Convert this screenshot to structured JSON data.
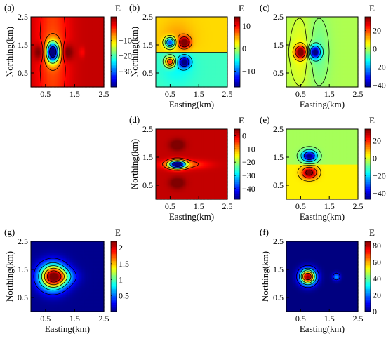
{
  "chart_data": [
    {
      "type": "heatmap",
      "panel_label": "(a)",
      "colorbar_title": "E",
      "xlabel": "Easting(km)",
      "ylabel": "Northing(km)",
      "xlim": [
        0,
        2.5
      ],
      "ylim": [
        0,
        2.5
      ],
      "x_ticks": [
        "0.5",
        "1.5",
        "2.5"
      ],
      "y_ticks": [
        "0.5",
        "1.5",
        "2.5"
      ],
      "show_xlabel": false,
      "show_ylabel": true,
      "clim": [
        -40,
        5
      ],
      "colorbar_ticks": [
        {
          "v": -10,
          "t": "−10"
        },
        {
          "v": -20,
          "t": "−20"
        },
        {
          "v": -30,
          "t": "−30"
        }
      ],
      "background": 2,
      "levels": [
        -35,
        -25,
        -15,
        -5,
        -1
      ],
      "blobs": [
        {
          "x": 0.75,
          "y": 1.25,
          "sx": 0.15,
          "sy": 0.25,
          "a": -42
        },
        {
          "x": 0.75,
          "y": 1.25,
          "sx": 0.38,
          "sy": 2.2,
          "a": -6
        },
        {
          "x": 0.3,
          "y": 1.25,
          "sx": 0.14,
          "sy": 0.2,
          "a": 6
        },
        {
          "x": 1.25,
          "y": 1.25,
          "sx": 0.14,
          "sy": 0.2,
          "a": 6
        },
        {
          "x": 1.75,
          "y": 1.25,
          "sx": 0.07,
          "sy": 0.13,
          "a": -2.5
        }
      ]
    },
    {
      "type": "heatmap",
      "panel_label": "(b)",
      "colorbar_title": "E",
      "xlabel": "Easting(km)",
      "ylabel": "Northing(km)",
      "xlim": [
        0,
        2.5
      ],
      "ylim": [
        0,
        2.5
      ],
      "x_ticks": [
        "0.5",
        "1.5",
        "2.5"
      ],
      "y_ticks": [
        "0.5",
        "1.5",
        "2.5"
      ],
      "show_xlabel": true,
      "show_ylabel": true,
      "clim": [
        -17,
        14
      ],
      "colorbar_ticks": [
        {
          "v": 10,
          "t": "10"
        },
        {
          "v": 0,
          "t": "0"
        },
        {
          "v": -10,
          "t": "−10"
        }
      ],
      "background": 0,
      "split": {
        "y": 1.25,
        "above": 3.5,
        "below": -3.5
      },
      "levels": [
        -12,
        -6,
        -2,
        2,
        6,
        10
      ],
      "blobs": [
        {
          "x": 0.5,
          "y": 1.6,
          "sx": 0.13,
          "sy": 0.13,
          "a": -16
        },
        {
          "x": 1.0,
          "y": 1.6,
          "sx": 0.13,
          "sy": 0.13,
          "a": 14
        },
        {
          "x": 0.5,
          "y": 0.9,
          "sx": 0.13,
          "sy": 0.13,
          "a": 14
        },
        {
          "x": 1.0,
          "y": 0.9,
          "sx": 0.13,
          "sy": 0.13,
          "a": -16
        },
        {
          "x": 0.75,
          "y": 1.6,
          "sx": 0.4,
          "sy": 0.5,
          "a": 2.5
        },
        {
          "x": 0.75,
          "y": 0.9,
          "sx": 0.4,
          "sy": 0.5,
          "a": -2.5
        }
      ]
    },
    {
      "type": "heatmap",
      "panel_label": "(c)",
      "colorbar_title": "E",
      "xlabel": "Easting(km)",
      "ylabel": "",
      "xlim": [
        0,
        2.5
      ],
      "ylim": [
        0,
        2.5
      ],
      "x_ticks": [
        "0.5",
        "1.5",
        "2.5"
      ],
      "y_ticks": [
        "0.5",
        "1.5",
        "2.5"
      ],
      "show_xlabel": true,
      "show_ylabel": false,
      "clim": [
        -42,
        35
      ],
      "colorbar_ticks": [
        {
          "v": 20,
          "t": "20"
        },
        {
          "v": 0,
          "t": "0"
        },
        {
          "v": -20,
          "t": "−20"
        },
        {
          "v": -40,
          "t": "−40"
        }
      ],
      "background": 0,
      "levels": [
        -20,
        -8,
        -2,
        2,
        8,
        20
      ],
      "blobs": [
        {
          "x": 0.5,
          "y": 1.25,
          "sx": 0.13,
          "sy": 0.15,
          "a": 42
        },
        {
          "x": 1.0,
          "y": 1.25,
          "sx": 0.13,
          "sy": 0.15,
          "a": -44
        },
        {
          "x": 0.55,
          "y": 1.25,
          "sx": 0.3,
          "sy": 0.9,
          "a": 6
        },
        {
          "x": 1.05,
          "y": 1.25,
          "sx": 0.3,
          "sy": 0.9,
          "a": -6
        }
      ]
    },
    {
      "type": "heatmap",
      "panel_label": "(d)",
      "colorbar_title": "E",
      "xlabel": "Easting(km)",
      "ylabel": "Northing(km)",
      "xlim": [
        0,
        2.5
      ],
      "ylim": [
        0,
        2.5
      ],
      "x_ticks": [
        "0.5",
        "1.5",
        "2.5"
      ],
      "y_ticks": [
        "0.5",
        "1.5",
        "2.5"
      ],
      "show_xlabel": true,
      "show_ylabel": true,
      "clim": [
        -48,
        5
      ],
      "colorbar_ticks": [
        {
          "v": 0,
          "t": "0"
        },
        {
          "v": -10,
          "t": "−10"
        },
        {
          "v": -20,
          "t": "−20"
        },
        {
          "v": -30,
          "t": "−30"
        },
        {
          "v": -40,
          "t": "−40"
        }
      ],
      "background": 1.5,
      "levels": [
        -40,
        -25,
        -12,
        -4
      ],
      "blobs": [
        {
          "x": 0.75,
          "y": 1.25,
          "sx": 0.2,
          "sy": 0.1,
          "a": -50
        },
        {
          "x": 0.95,
          "y": 1.25,
          "sx": 0.55,
          "sy": 0.11,
          "a": -9
        },
        {
          "x": 0.75,
          "y": 1.95,
          "sx": 0.18,
          "sy": 0.14,
          "a": 6
        },
        {
          "x": 0.75,
          "y": 0.6,
          "sx": 0.18,
          "sy": 0.14,
          "a": 6
        }
      ]
    },
    {
      "type": "heatmap",
      "panel_label": "(e)",
      "colorbar_title": "E",
      "xlabel": "Easting(km)",
      "ylabel": "",
      "xlim": [
        0,
        2.5
      ],
      "ylim": [
        0,
        2.5
      ],
      "x_ticks": [
        "0.5",
        "1.5",
        "2.5"
      ],
      "y_ticks": [
        "0.5",
        "1.5",
        "2.5"
      ],
      "show_xlabel": true,
      "show_ylabel": false,
      "clim": [
        -47,
        33
      ],
      "colorbar_ticks": [
        {
          "v": 20,
          "t": "20"
        },
        {
          "v": 0,
          "t": "0"
        },
        {
          "v": -20,
          "t": "−20"
        },
        {
          "v": -40,
          "t": "−40"
        }
      ],
      "background": 0,
      "split": {
        "y": 1.25,
        "above": -4,
        "below": 4
      },
      "levels": [
        -30,
        -15,
        -6,
        6,
        15,
        30
      ],
      "blobs": [
        {
          "x": 0.8,
          "y": 1.55,
          "sx": 0.17,
          "sy": 0.13,
          "a": -46
        },
        {
          "x": 0.8,
          "y": 0.95,
          "sx": 0.17,
          "sy": 0.13,
          "a": 34
        }
      ]
    },
    {
      "type": "heatmap",
      "panel_label": "(g)",
      "colorbar_title": "E",
      "xlabel": "Easting(km)",
      "ylabel": "Northing(km)",
      "xlim": [
        0,
        2.5
      ],
      "ylim": [
        0,
        2.5
      ],
      "x_ticks": [
        "0.5",
        "1.5",
        "2.5"
      ],
      "y_ticks": [
        "0.5",
        "1.5",
        "2.5"
      ],
      "show_xlabel": true,
      "show_ylabel": true,
      "clim": [
        0,
        2.2
      ],
      "colorbar_ticks": [
        {
          "v": 2,
          "t": "2"
        },
        {
          "v": 1.5,
          "t": "1.5"
        },
        {
          "v": 1,
          "t": "1"
        },
        {
          "v": 0.5,
          "t": "0.5"
        }
      ],
      "background": 0.03,
      "levels": [
        0.3,
        0.7,
        1.1,
        1.5,
        1.9
      ],
      "blobs": [
        {
          "x": 0.75,
          "y": 1.25,
          "sx": 0.32,
          "sy": 0.32,
          "a": 2.15
        },
        {
          "x": 1.15,
          "y": 1.25,
          "sx": 0.3,
          "sy": 0.2,
          "a": 0.45
        }
      ]
    },
    {
      "type": "heatmap",
      "panel_label": "(f)",
      "colorbar_title": "E",
      "xlabel": "Easting(km)",
      "ylabel": "Northing(km)",
      "xlim": [
        0,
        2.5
      ],
      "ylim": [
        0,
        2.5
      ],
      "x_ticks": [
        "0.5",
        "1.5",
        "2.5"
      ],
      "y_ticks": [
        "0.5",
        "1.5",
        "2.5"
      ],
      "show_xlabel": true,
      "show_ylabel": true,
      "clim": [
        0,
        85
      ],
      "colorbar_ticks": [
        {
          "v": 80,
          "t": "80"
        },
        {
          "v": 60,
          "t": "60"
        },
        {
          "v": 40,
          "t": "40"
        },
        {
          "v": 20,
          "t": "20"
        },
        {
          "v": 0,
          "t": "0"
        }
      ],
      "background": 0,
      "levels": [
        10,
        25,
        40,
        55,
        70
      ],
      "blobs": [
        {
          "x": 0.75,
          "y": 1.25,
          "sx": 0.19,
          "sy": 0.19,
          "a": 85
        },
        {
          "x": 1.75,
          "y": 1.25,
          "sx": 0.09,
          "sy": 0.09,
          "a": 24
        }
      ]
    }
  ]
}
